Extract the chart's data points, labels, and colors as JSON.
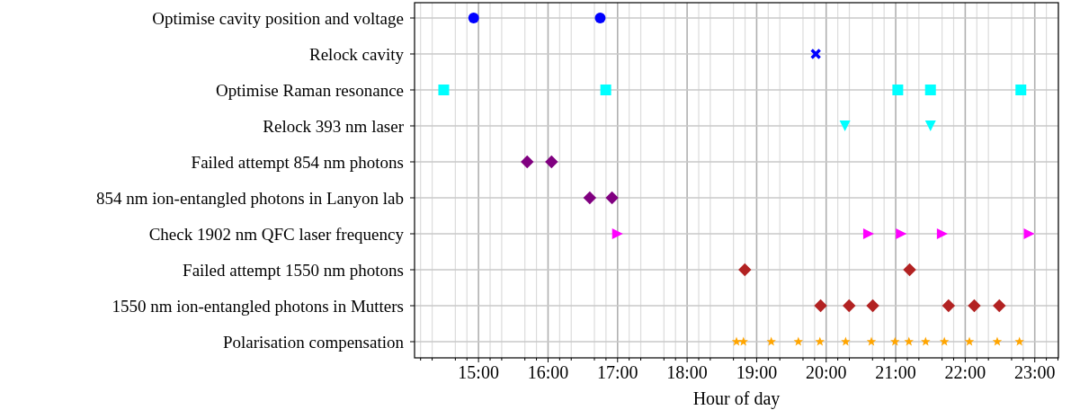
{
  "chart_data": {
    "type": "scatter",
    "orientation": "horizontal",
    "xlabel": "Hour of day",
    "categories": [
      "Optimise cavity position and voltage",
      "Relock cavity",
      "Optimise Raman resonance",
      "Relock 393 nm laser",
      "Failed attempt 854 nm photons",
      "854 nm ion-entangled photons in Lanyon lab",
      "Check 1902 nm QFC laser frequency",
      "Failed attempt 1550 nm photons",
      "1550 nm ion-entangled photons in Mutters",
      "Polarisation compensation"
    ],
    "series": [
      {
        "color": "#0000ff",
        "marker": "circle",
        "values": [
          14.93,
          null,
          null,
          null,
          null,
          null,
          null,
          null,
          null,
          null
        ]
      },
      {
        "color": "#0000ff",
        "marker": "circle",
        "values": [
          16.75,
          null,
          null,
          null,
          null,
          null,
          null,
          null,
          null,
          null
        ]
      },
      {
        "color": "#0000ff",
        "marker": "cross",
        "values": [
          null,
          19.85,
          null,
          null,
          null,
          null,
          null,
          null,
          null,
          null
        ]
      },
      {
        "color": "#00ffff",
        "marker": "square",
        "values": [
          null,
          null,
          14.5,
          null,
          null,
          null,
          null,
          null,
          null,
          null
        ]
      },
      {
        "color": "#00ffff",
        "marker": "square",
        "values": [
          null,
          null,
          16.83,
          null,
          null,
          null,
          null,
          null,
          null,
          null
        ]
      },
      {
        "color": "#00ffff",
        "marker": "square",
        "values": [
          null,
          null,
          21.03,
          null,
          null,
          null,
          null,
          null,
          null,
          null
        ]
      },
      {
        "color": "#00ffff",
        "marker": "square",
        "values": [
          null,
          null,
          21.5,
          null,
          null,
          null,
          null,
          null,
          null,
          null
        ]
      },
      {
        "color": "#00ffff",
        "marker": "square",
        "values": [
          null,
          null,
          22.8,
          null,
          null,
          null,
          null,
          null,
          null,
          null
        ]
      },
      {
        "color": "#00ffff",
        "marker": "triangle-down",
        "values": [
          null,
          null,
          null,
          20.27,
          null,
          null,
          null,
          null,
          null,
          null
        ]
      },
      {
        "color": "#00ffff",
        "marker": "triangle-down",
        "values": [
          null,
          null,
          null,
          21.5,
          null,
          null,
          null,
          null,
          null,
          null
        ]
      },
      {
        "color": "#800080",
        "marker": "diamond",
        "values": [
          null,
          null,
          null,
          null,
          15.7,
          16.6,
          null,
          null,
          null,
          null
        ]
      },
      {
        "color": "#800080",
        "marker": "diamond",
        "values": [
          null,
          null,
          null,
          null,
          16.05,
          16.92,
          null,
          null,
          null,
          null
        ]
      },
      {
        "color": "#ff00ff",
        "marker": "triangle-right",
        "values": [
          null,
          null,
          null,
          null,
          null,
          null,
          17.0,
          null,
          null,
          null
        ]
      },
      {
        "color": "#ff00ff",
        "marker": "triangle-right",
        "values": [
          null,
          null,
          null,
          null,
          null,
          null,
          20.61,
          null,
          null,
          null
        ]
      },
      {
        "color": "#ff00ff",
        "marker": "triangle-right",
        "values": [
          null,
          null,
          null,
          null,
          null,
          null,
          21.08,
          null,
          null,
          null
        ]
      },
      {
        "color": "#ff00ff",
        "marker": "triangle-right",
        "values": [
          null,
          null,
          null,
          null,
          null,
          null,
          21.67,
          null,
          null,
          null
        ]
      },
      {
        "color": "#ff00ff",
        "marker": "triangle-right",
        "values": [
          null,
          null,
          null,
          null,
          null,
          null,
          22.92,
          null,
          null,
          null
        ]
      },
      {
        "color": "#b22222",
        "marker": "diamond",
        "values": [
          null,
          null,
          null,
          null,
          null,
          null,
          null,
          18.83,
          19.92,
          null
        ]
      },
      {
        "color": "#b22222",
        "marker": "diamond",
        "values": [
          null,
          null,
          null,
          null,
          null,
          null,
          null,
          21.2,
          20.33,
          null
        ]
      },
      {
        "color": "#b22222",
        "marker": "diamond",
        "values": [
          null,
          null,
          null,
          null,
          null,
          null,
          null,
          null,
          20.67,
          null
        ]
      },
      {
        "color": "#b22222",
        "marker": "diamond",
        "values": [
          null,
          null,
          null,
          null,
          null,
          null,
          null,
          null,
          21.76,
          null
        ]
      },
      {
        "color": "#b22222",
        "marker": "diamond",
        "values": [
          null,
          null,
          null,
          null,
          null,
          null,
          null,
          null,
          22.13,
          null
        ]
      },
      {
        "color": "#b22222",
        "marker": "diamond",
        "values": [
          null,
          null,
          null,
          null,
          null,
          null,
          null,
          null,
          22.49,
          null
        ]
      },
      {
        "color": "#ffa500",
        "marker": "star",
        "values": [
          null,
          null,
          null,
          null,
          null,
          null,
          null,
          null,
          null,
          18.71
        ]
      },
      {
        "color": "#ffa500",
        "marker": "star",
        "values": [
          null,
          null,
          null,
          null,
          null,
          null,
          null,
          null,
          null,
          18.81
        ]
      },
      {
        "color": "#ffa500",
        "marker": "star",
        "values": [
          null,
          null,
          null,
          null,
          null,
          null,
          null,
          null,
          null,
          19.21
        ]
      },
      {
        "color": "#ffa500",
        "marker": "star",
        "values": [
          null,
          null,
          null,
          null,
          null,
          null,
          null,
          null,
          null,
          19.6
        ]
      },
      {
        "color": "#ffa500",
        "marker": "star",
        "values": [
          null,
          null,
          null,
          null,
          null,
          null,
          null,
          null,
          null,
          19.91
        ]
      },
      {
        "color": "#ffa500",
        "marker": "star",
        "values": [
          null,
          null,
          null,
          null,
          null,
          null,
          null,
          null,
          null,
          20.28
        ]
      },
      {
        "color": "#ffa500",
        "marker": "star",
        "values": [
          null,
          null,
          null,
          null,
          null,
          null,
          null,
          null,
          null,
          20.65
        ]
      },
      {
        "color": "#ffa500",
        "marker": "star",
        "values": [
          null,
          null,
          null,
          null,
          null,
          null,
          null,
          null,
          null,
          20.99
        ]
      },
      {
        "color": "#ffa500",
        "marker": "star",
        "values": [
          null,
          null,
          null,
          null,
          null,
          null,
          null,
          null,
          null,
          21.19
        ]
      },
      {
        "color": "#ffa500",
        "marker": "star",
        "values": [
          null,
          null,
          null,
          null,
          null,
          null,
          null,
          null,
          null,
          21.43
        ]
      },
      {
        "color": "#ffa500",
        "marker": "star",
        "values": [
          null,
          null,
          null,
          null,
          null,
          null,
          null,
          null,
          null,
          21.7
        ]
      },
      {
        "color": "#ffa500",
        "marker": "star",
        "values": [
          null,
          null,
          null,
          null,
          null,
          null,
          null,
          null,
          null,
          22.06
        ]
      },
      {
        "color": "#ffa500",
        "marker": "star",
        "values": [
          null,
          null,
          null,
          null,
          null,
          null,
          null,
          null,
          null,
          22.46
        ]
      },
      {
        "color": "#ffa500",
        "marker": "star",
        "values": [
          null,
          null,
          null,
          null,
          null,
          null,
          null,
          null,
          null,
          22.78
        ]
      }
    ],
    "xlim": [
      14.08,
      23.34
    ],
    "xticks": [
      {
        "value": 14.1667,
        "label": null
      },
      {
        "value": 14.3333,
        "label": null
      },
      {
        "value": 14.6667,
        "label": null
      },
      {
        "value": 14.8333,
        "label": null
      },
      {
        "value": 15,
        "label": "15:00"
      },
      {
        "value": 15.1667,
        "label": null
      },
      {
        "value": 15.3333,
        "label": null
      },
      {
        "value": 15.6667,
        "label": null
      },
      {
        "value": 15.8333,
        "label": null
      },
      {
        "value": 16,
        "label": "16:00"
      },
      {
        "value": 16.1667,
        "label": null
      },
      {
        "value": 16.3333,
        "label": null
      },
      {
        "value": 16.6667,
        "label": null
      },
      {
        "value": 16.8333,
        "label": null
      },
      {
        "value": 17,
        "label": "17:00"
      },
      {
        "value": 17.1667,
        "label": null
      },
      {
        "value": 17.3333,
        "label": null
      },
      {
        "value": 17.6667,
        "label": null
      },
      {
        "value": 17.8333,
        "label": null
      },
      {
        "value": 18,
        "label": "18:00"
      },
      {
        "value": 18.1667,
        "label": null
      },
      {
        "value": 18.3333,
        "label": null
      },
      {
        "value": 18.6667,
        "label": null
      },
      {
        "value": 18.8333,
        "label": null
      },
      {
        "value": 19,
        "label": "19:00"
      },
      {
        "value": 19.1667,
        "label": null
      },
      {
        "value": 19.3333,
        "label": null
      },
      {
        "value": 19.6667,
        "label": null
      },
      {
        "value": 19.8333,
        "label": null
      },
      {
        "value": 20,
        "label": "20:00"
      },
      {
        "value": 20.1667,
        "label": null
      },
      {
        "value": 20.3333,
        "label": null
      },
      {
        "value": 20.6667,
        "label": null
      },
      {
        "value": 20.8333,
        "label": null
      },
      {
        "value": 21,
        "label": "21:00"
      },
      {
        "value": 21.1667,
        "label": null
      },
      {
        "value": 21.3333,
        "label": null
      },
      {
        "value": 21.6667,
        "label": null
      },
      {
        "value": 21.8333,
        "label": null
      },
      {
        "value": 22,
        "label": "22:00"
      },
      {
        "value": 22.1667,
        "label": null
      },
      {
        "value": 22.3333,
        "label": null
      },
      {
        "value": 22.6667,
        "label": null
      },
      {
        "value": 22.8333,
        "label": null
      },
      {
        "value": 23,
        "label": "23:00"
      },
      {
        "value": 23.1667,
        "label": null
      },
      {
        "value": 23.3333,
        "label": null
      }
    ],
    "grid": true
  }
}
